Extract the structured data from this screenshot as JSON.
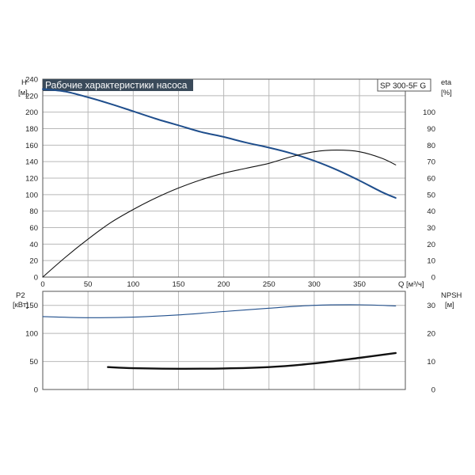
{
  "chart_data": [
    {
      "type": "line",
      "title": "Рабочие характеристики насоса",
      "model_label": "SP 300-5F G",
      "x_label": "Q [м³/ч]",
      "x_ticks": [
        0,
        50,
        100,
        150,
        200,
        250,
        300,
        350
      ],
      "xlim": [
        0,
        400
      ],
      "y_left": {
        "label_line1": "H",
        "label_line2": "[м]",
        "ylim": [
          0,
          240
        ],
        "ticks": [
          0,
          20,
          40,
          60,
          80,
          100,
          120,
          140,
          160,
          180,
          200,
          220,
          240
        ]
      },
      "y_right": {
        "label_line1": "eta",
        "label_line2": "[%]",
        "ylim": [
          0,
          120
        ],
        "ticks": [
          0,
          10,
          20,
          30,
          40,
          50,
          60,
          70,
          80,
          90,
          100
        ]
      },
      "grid": true,
      "series": [
        {
          "key": "head",
          "axis": "left",
          "color": "#1f4e8c",
          "x": [
            0,
            25,
            50,
            75,
            100,
            125,
            150,
            175,
            200,
            225,
            250,
            275,
            300,
            325,
            350,
            375,
            390
          ],
          "y": [
            228,
            225,
            218,
            210,
            201,
            192,
            184,
            176,
            170,
            163,
            157,
            150,
            141,
            130,
            117,
            103,
            96
          ]
        },
        {
          "key": "efficiency",
          "axis": "right",
          "color": "#111111",
          "x": [
            0,
            25,
            50,
            75,
            100,
            125,
            150,
            175,
            200,
            225,
            250,
            275,
            300,
            325,
            350,
            375,
            390
          ],
          "y": [
            0,
            12,
            23,
            33,
            41,
            48,
            54,
            59,
            63,
            66,
            69,
            73,
            76,
            77,
            76,
            72,
            68
          ]
        }
      ]
    },
    {
      "type": "line",
      "x_ticks": [
        0,
        50,
        100,
        150,
        200,
        250,
        300,
        350
      ],
      "xlim": [
        0,
        400
      ],
      "y_left": {
        "label_line1": "P2",
        "label_line2": "[кВт]",
        "ylim": [
          0,
          175
        ],
        "ticks": [
          0,
          50,
          100,
          150
        ]
      },
      "y_right": {
        "label_line1": "NPSH",
        "label_line2": "[м]",
        "ylim": [
          0,
          35
        ],
        "ticks": [
          0,
          10,
          20,
          30
        ]
      },
      "grid": true,
      "series": [
        {
          "key": "power_p2",
          "axis": "left",
          "color": "#1f4e8c",
          "x": [
            0,
            50,
            100,
            150,
            200,
            250,
            300,
            350,
            390
          ],
          "y": [
            130,
            128,
            129,
            133,
            139,
            145,
            150,
            151,
            149
          ]
        },
        {
          "key": "npsh",
          "axis": "right",
          "color": "#111111",
          "x": [
            72,
            100,
            150,
            200,
            250,
            300,
            350,
            390
          ],
          "y": [
            8.0,
            7.6,
            7.4,
            7.5,
            8.0,
            9.3,
            11.3,
            13.0
          ]
        }
      ]
    }
  ]
}
